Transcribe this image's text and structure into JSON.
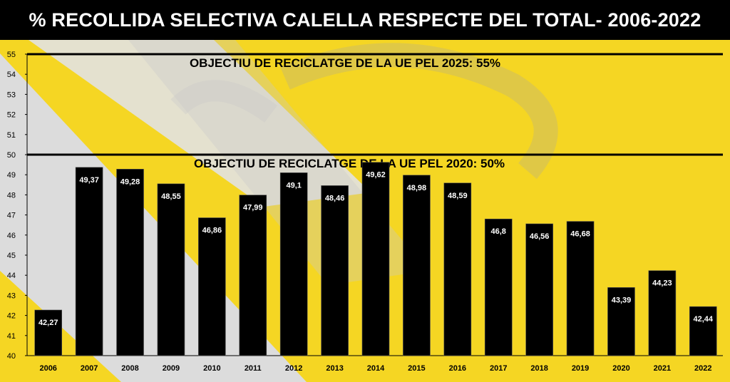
{
  "title": "% RECOLLIDA SELECTIVA CALELLA RESPECTE DEL TOTAL- 2006-2022",
  "colors": {
    "background": "#f5d623",
    "band_gray": "#d9d9d9",
    "bar": "#000000",
    "title_bar": "#000000",
    "title_text": "#ffffff",
    "bar_label": "#ffffff"
  },
  "chart_data": {
    "type": "bar",
    "title": "% RECOLLIDA SELECTIVA CALELLA RESPECTE DEL TOTAL- 2006-2022",
    "xlabel": "",
    "ylabel": "",
    "ylim": [
      40,
      55
    ],
    "yticks": [
      40,
      41,
      42,
      43,
      44,
      45,
      46,
      47,
      48,
      49,
      50,
      51,
      52,
      53,
      54,
      55
    ],
    "grid": false,
    "legend": "none",
    "categories": [
      "2006",
      "2007",
      "2008",
      "2009",
      "2010",
      "2011",
      "2012",
      "2013",
      "2014",
      "2015",
      "2016",
      "2017",
      "2018",
      "2019",
      "2020",
      "2021",
      "2022"
    ],
    "values": [
      42.27,
      49.37,
      49.28,
      48.55,
      46.86,
      47.99,
      49.1,
      48.46,
      49.62,
      48.98,
      48.59,
      46.8,
      46.56,
      46.68,
      43.39,
      44.23,
      42.44
    ],
    "value_labels": [
      "42,27",
      "49,37",
      "49,28",
      "48,55",
      "46,86",
      "47,99",
      "49,1",
      "48,46",
      "49,62",
      "48,98",
      "48,59",
      "46,8",
      "46,56",
      "46,68",
      "43,39",
      "44,23",
      "42,44"
    ],
    "reference_lines": [
      {
        "value": 55,
        "label": "OBJECTIU DE RECICLATGE DE LA UE PEL 2025: 55%"
      },
      {
        "value": 50,
        "label": "OBJECTIU DE RECICLATGE DE LA UE PEL 2020: 50%"
      }
    ]
  }
}
